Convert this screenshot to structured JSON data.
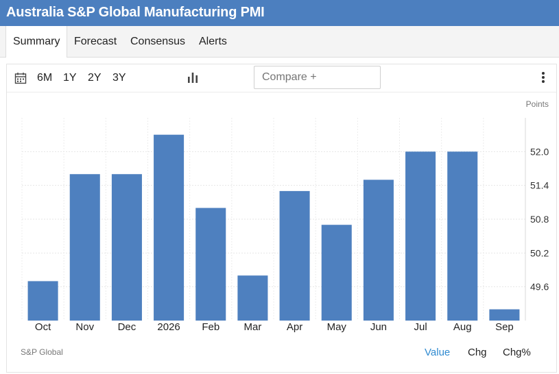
{
  "header": {
    "title": "Australia S&P Global Manufacturing PMI"
  },
  "tabs": [
    {
      "label": "Summary",
      "active": true
    },
    {
      "label": "Forecast",
      "active": false
    },
    {
      "label": "Consensus",
      "active": false
    },
    {
      "label": "Alerts",
      "active": false
    }
  ],
  "toolbar": {
    "ranges": [
      "6M",
      "1Y",
      "2Y",
      "3Y"
    ],
    "compare_placeholder": "Compare +",
    "icons": {
      "calendar": "calendar-icon",
      "chart_type": "bar-chart-icon",
      "more": "more-vertical-icon"
    }
  },
  "footer": {
    "source": "S&P Global",
    "modes": [
      {
        "label": "Value",
        "active": true
      },
      {
        "label": "Chg",
        "active": false
      },
      {
        "label": "Chg%",
        "active": false
      }
    ]
  },
  "colors": {
    "bar": "#4e80bf",
    "header": "#4c7fbf",
    "active_mode": "#2f8ad0"
  },
  "chart_data": {
    "type": "bar",
    "unit_label": "Points",
    "categories": [
      "Oct",
      "Nov",
      "Dec",
      "2026",
      "Feb",
      "Mar",
      "Apr",
      "May",
      "Jun",
      "Jul",
      "Aug",
      "Sep"
    ],
    "values": [
      49.7,
      51.6,
      51.6,
      52.3,
      51.0,
      49.8,
      51.3,
      50.7,
      51.5,
      52.0,
      52.0,
      49.2
    ],
    "yticks": [
      49.6,
      50.2,
      50.8,
      51.4,
      52.0
    ],
    "ylim": [
      49.0,
      52.6
    ],
    "y_axis_position": "right",
    "grid": true
  }
}
